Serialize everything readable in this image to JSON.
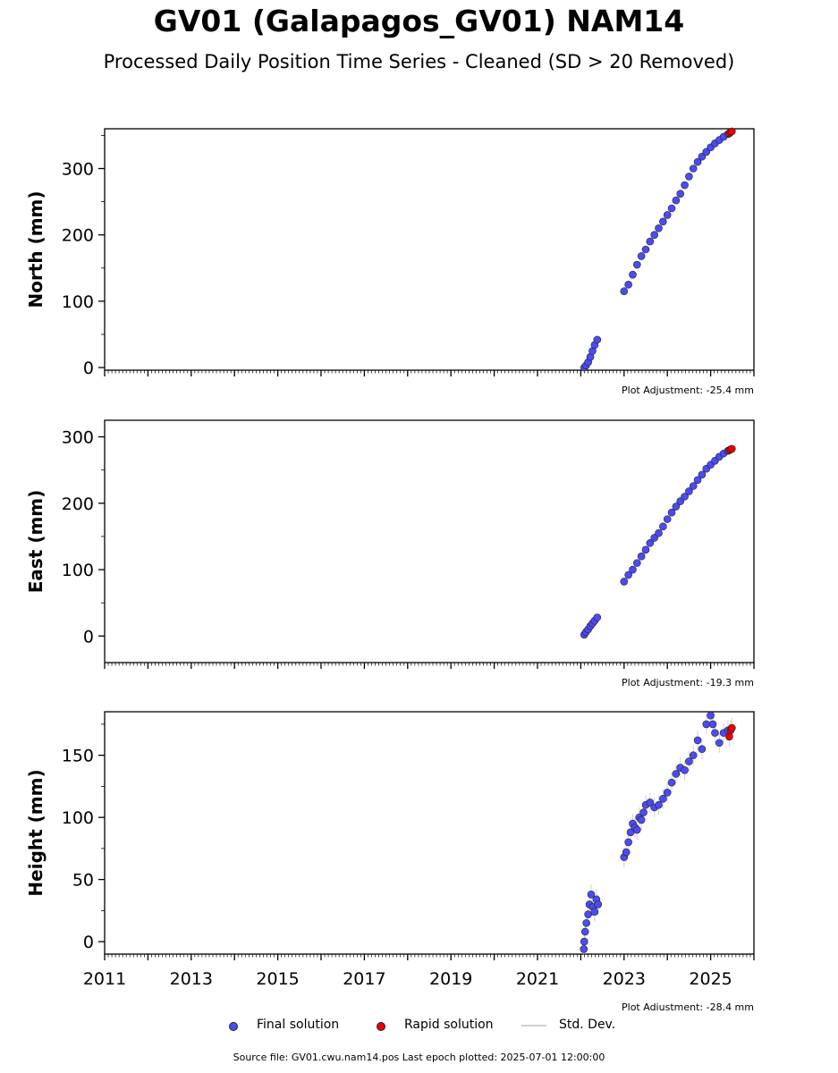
{
  "title": "GV01 (Galapagos_GV01) NAM14",
  "subtitle": "Processed Daily Position Time Series - Cleaned (SD > 20 Removed)",
  "footer": "Source file: GV01.cwu.nam14.pos  Last epoch plotted: 2025-07-01 12:00:00",
  "legend": {
    "final_label": "Final solution",
    "rapid_label": "Rapid solution",
    "std_label": "Std. Dev."
  },
  "colors": {
    "final": "#4b4bf5",
    "rapid": "#ee0000",
    "std": "#cfcfcf",
    "marker_edge": "#222222"
  },
  "chart_data": [
    {
      "type": "scatter",
      "ylabel": "North (mm)",
      "xlim": [
        2011.0,
        2026.0
      ],
      "ylim": [
        -4,
        360
      ],
      "yticks": [
        0,
        100,
        200,
        300
      ],
      "adjustment": "Plot Adjustment: -25.4 mm",
      "show_xtick_labels": false,
      "series": [
        {
          "name": "Final solution",
          "points": [
            [
              2022.08,
              0
            ],
            [
              2022.12,
              3
            ],
            [
              2022.17,
              8
            ],
            [
              2022.22,
              16
            ],
            [
              2022.27,
              25
            ],
            [
              2022.32,
              34
            ],
            [
              2022.38,
              42
            ],
            [
              2023.0,
              115
            ],
            [
              2023.1,
              125
            ],
            [
              2023.2,
              140
            ],
            [
              2023.3,
              155
            ],
            [
              2023.4,
              168
            ],
            [
              2023.5,
              178
            ],
            [
              2023.6,
              190
            ],
            [
              2023.7,
              200
            ],
            [
              2023.8,
              210
            ],
            [
              2023.9,
              220
            ],
            [
              2024.0,
              230
            ],
            [
              2024.1,
              240
            ],
            [
              2024.2,
              252
            ],
            [
              2024.3,
              262
            ],
            [
              2024.4,
              275
            ],
            [
              2024.5,
              288
            ],
            [
              2024.6,
              300
            ],
            [
              2024.7,
              310
            ],
            [
              2024.8,
              318
            ],
            [
              2024.9,
              325
            ],
            [
              2025.0,
              332
            ],
            [
              2025.1,
              338
            ],
            [
              2025.2,
              343
            ],
            [
              2025.3,
              348
            ],
            [
              2025.4,
              352
            ]
          ]
        },
        {
          "name": "Rapid solution",
          "points": [
            [
              2025.43,
              353
            ],
            [
              2025.46,
              355
            ],
            [
              2025.49,
              356
            ]
          ]
        }
      ]
    },
    {
      "type": "scatter",
      "ylabel": "East (mm)",
      "xlim": [
        2011.0,
        2026.0
      ],
      "ylim": [
        -40,
        325
      ],
      "yticks": [
        0,
        100,
        200,
        300
      ],
      "adjustment": "Plot Adjustment: -19.3 mm",
      "show_xtick_labels": false,
      "series": [
        {
          "name": "Final solution",
          "points": [
            [
              2022.08,
              2
            ],
            [
              2022.12,
              6
            ],
            [
              2022.17,
              10
            ],
            [
              2022.22,
              15
            ],
            [
              2022.27,
              19
            ],
            [
              2022.32,
              23
            ],
            [
              2022.38,
              28
            ],
            [
              2023.0,
              82
            ],
            [
              2023.1,
              92
            ],
            [
              2023.2,
              100
            ],
            [
              2023.3,
              110
            ],
            [
              2023.4,
              120
            ],
            [
              2023.5,
              130
            ],
            [
              2023.6,
              140
            ],
            [
              2023.7,
              148
            ],
            [
              2023.8,
              155
            ],
            [
              2023.9,
              165
            ],
            [
              2024.0,
              176
            ],
            [
              2024.1,
              186
            ],
            [
              2024.2,
              195
            ],
            [
              2024.3,
              203
            ],
            [
              2024.4,
              210
            ],
            [
              2024.5,
              218
            ],
            [
              2024.6,
              226
            ],
            [
              2024.7,
              235
            ],
            [
              2024.8,
              243
            ],
            [
              2024.9,
              252
            ],
            [
              2025.0,
              258
            ],
            [
              2025.1,
              264
            ],
            [
              2025.2,
              270
            ],
            [
              2025.3,
              275
            ],
            [
              2025.4,
              279
            ]
          ]
        },
        {
          "name": "Rapid solution",
          "points": [
            [
              2025.43,
              280
            ],
            [
              2025.46,
              281
            ],
            [
              2025.49,
              282
            ]
          ]
        }
      ]
    },
    {
      "type": "scatter",
      "ylabel": "Height (mm)",
      "xlim": [
        2011.0,
        2026.0
      ],
      "ylim": [
        -10,
        185
      ],
      "yticks": [
        0,
        50,
        100,
        150
      ],
      "xticks": [
        2011,
        2013,
        2015,
        2017,
        2019,
        2021,
        2023,
        2025
      ],
      "adjustment": "Plot Adjustment: -28.4 mm",
      "show_xtick_labels": true,
      "series": [
        {
          "name": "Final solution",
          "points": [
            [
              2022.08,
              0
            ],
            [
              2022.1,
              8
            ],
            [
              2022.13,
              15
            ],
            [
              2022.17,
              22
            ],
            [
              2022.2,
              30
            ],
            [
              2022.24,
              38
            ],
            [
              2022.28,
              28
            ],
            [
              2022.32,
              24
            ],
            [
              2022.36,
              34
            ],
            [
              2022.4,
              30
            ],
            [
              2022.07,
              -6
            ],
            [
              2023.0,
              68
            ],
            [
              2023.05,
              72
            ],
            [
              2023.1,
              80
            ],
            [
              2023.15,
              88
            ],
            [
              2023.2,
              95
            ],
            [
              2023.25,
              92
            ],
            [
              2023.3,
              90
            ],
            [
              2023.35,
              100
            ],
            [
              2023.4,
              98
            ],
            [
              2023.45,
              104
            ],
            [
              2023.5,
              110
            ],
            [
              2023.6,
              112
            ],
            [
              2023.7,
              108
            ],
            [
              2023.8,
              110
            ],
            [
              2023.9,
              115
            ],
            [
              2024.0,
              120
            ],
            [
              2024.1,
              128
            ],
            [
              2024.2,
              135
            ],
            [
              2024.3,
              140
            ],
            [
              2024.4,
              138
            ],
            [
              2024.5,
              145
            ],
            [
              2024.6,
              150
            ],
            [
              2024.7,
              162
            ],
            [
              2024.8,
              155
            ],
            [
              2024.9,
              175
            ],
            [
              2025.0,
              182
            ],
            [
              2025.05,
              175
            ],
            [
              2025.1,
              168
            ],
            [
              2025.2,
              160
            ],
            [
              2025.3,
              168
            ],
            [
              2025.4,
              170
            ]
          ]
        },
        {
          "name": "Rapid solution",
          "points": [
            [
              2025.43,
              165
            ],
            [
              2025.46,
              170
            ],
            [
              2025.49,
              172
            ]
          ]
        }
      ]
    }
  ]
}
